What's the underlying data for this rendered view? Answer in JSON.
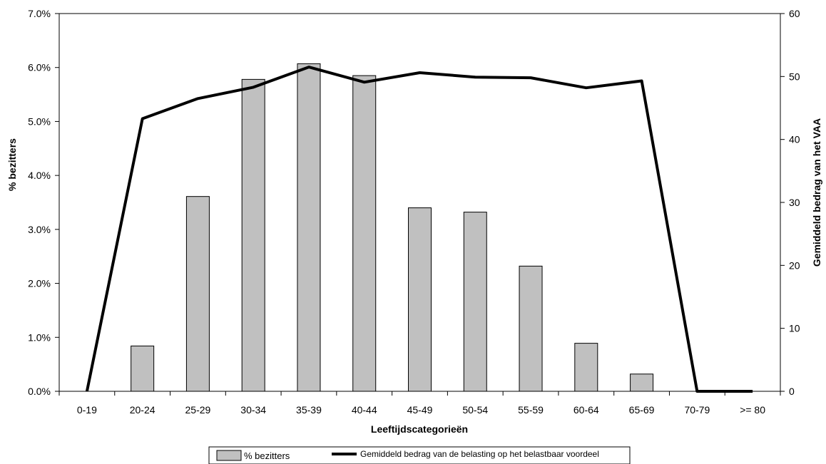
{
  "chart_data": {
    "type": "bar",
    "title": "",
    "xlabel": "Leeftijdscategorieën",
    "ylabel": "% bezitters",
    "y2label": "Gemiddeld bedrag van het VAA",
    "categories": [
      "0-19",
      "20-24",
      "25-29",
      "30-34",
      "35-39",
      "40-44",
      "45-49",
      "50-54",
      "55-59",
      "60-64",
      "65-69",
      "70-79",
      ">= 80"
    ],
    "ylim": [
      0,
      7
    ],
    "y_ticks": [
      "0.0%",
      "1.0%",
      "2.0%",
      "3.0%",
      "4.0%",
      "5.0%",
      "6.0%",
      "7.0%"
    ],
    "y2lim": [
      0,
      60
    ],
    "y2_ticks": [
      "0",
      "10",
      "20",
      "30",
      "40",
      "50",
      "60"
    ],
    "grid": false,
    "legend_position": "bottom",
    "series": [
      {
        "name": "% bezitters",
        "type": "bar",
        "axis": "left",
        "color": "#c0c0c0",
        "values": [
          0,
          0.84,
          3.61,
          5.78,
          6.07,
          5.85,
          3.4,
          3.32,
          2.32,
          0.89,
          0.32,
          0,
          0
        ]
      },
      {
        "name": "Gemiddeld bedrag van de belasting op het belastbaar voordeel",
        "type": "line",
        "axis": "right",
        "color": "#000000",
        "values": [
          0,
          43.3,
          46.5,
          48.3,
          51.5,
          49.1,
          50.6,
          49.9,
          49.8,
          48.2,
          49.3,
          0,
          0
        ]
      }
    ]
  }
}
